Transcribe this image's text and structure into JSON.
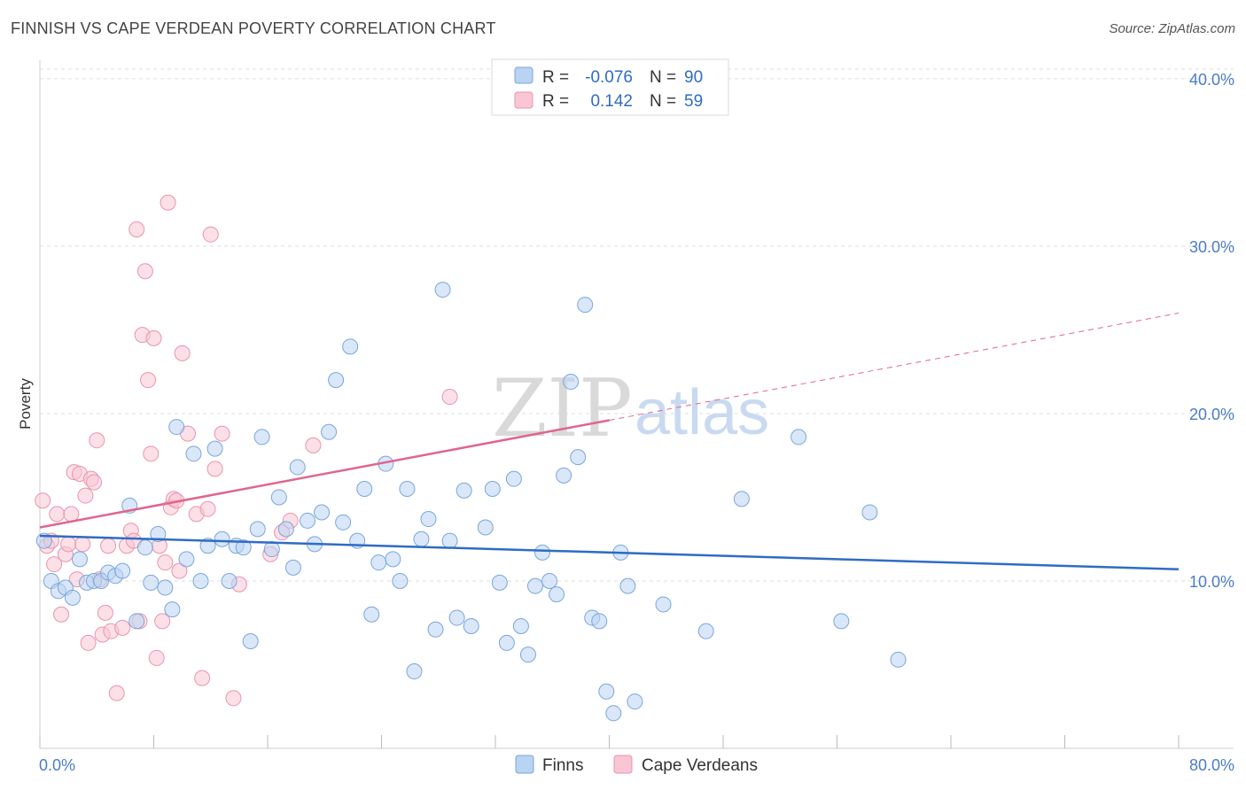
{
  "header": {
    "title": "FINNISH VS CAPE VERDEAN POVERTY CORRELATION CHART",
    "source": "Source: ZipAtlas.com"
  },
  "watermark": {
    "zip": "ZIP",
    "atlas": "atlas"
  },
  "colors": {
    "finns_fill": "#b9d3f3",
    "finns_stroke": "#7aa6dd",
    "finns_line": "#2f6cc4",
    "cape_fill": "#f9c6d4",
    "cape_stroke": "#e994ae",
    "cape_line": "#e0658f",
    "tick_text": "#4a7cc8",
    "grid": "#dddddd"
  },
  "legend": {
    "rows": [
      {
        "r_label": "R =",
        "r_value": "-0.076",
        "n_label": "N =",
        "n_value": "90"
      },
      {
        "r_label": "R =",
        "r_value": "0.142",
        "n_label": "N =",
        "n_value": "59"
      }
    ]
  },
  "bottom_legend": [
    "Finns",
    "Cape Verdeans"
  ],
  "chart_data": {
    "type": "scatter",
    "xlabel": "",
    "ylabel": "Poverty",
    "xlim": [
      0,
      80
    ],
    "ylim": [
      0,
      41
    ],
    "x_tick_labels": [
      "0.0%",
      "80.0%"
    ],
    "y_ticks": [
      10,
      20,
      30,
      40
    ],
    "y_tick_labels": [
      "10.0%",
      "20.0%",
      "30.0%",
      "40.0%"
    ],
    "grid": true,
    "legend_position": "top-center",
    "series": [
      {
        "name": "Finns",
        "trend": {
          "x": [
            0,
            80
          ],
          "y": [
            12.7,
            10.7
          ],
          "solid_to": 80
        },
        "points": [
          [
            0.3,
            12.4
          ],
          [
            0.8,
            10.0
          ],
          [
            1.3,
            9.4
          ],
          [
            1.8,
            9.6
          ],
          [
            2.3,
            9.0
          ],
          [
            2.8,
            11.3
          ],
          [
            3.3,
            9.9
          ],
          [
            3.8,
            10.0
          ],
          [
            4.3,
            10.0
          ],
          [
            4.8,
            10.5
          ],
          [
            5.3,
            10.3
          ],
          [
            5.8,
            10.6
          ],
          [
            6.3,
            14.5
          ],
          [
            6.8,
            7.6
          ],
          [
            7.4,
            12.0
          ],
          [
            7.8,
            9.9
          ],
          [
            8.3,
            12.8
          ],
          [
            8.8,
            9.6
          ],
          [
            9.3,
            8.3
          ],
          [
            9.6,
            19.2
          ],
          [
            10.3,
            11.3
          ],
          [
            10.8,
            17.6
          ],
          [
            11.3,
            10.0
          ],
          [
            11.8,
            12.1
          ],
          [
            12.3,
            17.9
          ],
          [
            12.8,
            12.5
          ],
          [
            13.3,
            10.0
          ],
          [
            13.8,
            12.1
          ],
          [
            14.3,
            12.0
          ],
          [
            14.8,
            6.4
          ],
          [
            15.3,
            13.1
          ],
          [
            15.6,
            18.6
          ],
          [
            16.3,
            11.9
          ],
          [
            16.8,
            15.0
          ],
          [
            17.3,
            13.1
          ],
          [
            17.8,
            10.8
          ],
          [
            18.1,
            16.8
          ],
          [
            18.8,
            13.6
          ],
          [
            19.3,
            12.2
          ],
          [
            19.8,
            14.1
          ],
          [
            20.3,
            18.9
          ],
          [
            20.8,
            22.0
          ],
          [
            21.3,
            13.5
          ],
          [
            21.8,
            24.0
          ],
          [
            22.3,
            12.4
          ],
          [
            22.8,
            15.5
          ],
          [
            23.3,
            8.0
          ],
          [
            23.8,
            11.1
          ],
          [
            24.3,
            17.0
          ],
          [
            24.8,
            11.3
          ],
          [
            25.3,
            10.0
          ],
          [
            25.8,
            15.5
          ],
          [
            26.3,
            4.6
          ],
          [
            26.8,
            12.5
          ],
          [
            27.3,
            13.7
          ],
          [
            27.8,
            7.1
          ],
          [
            28.3,
            27.4
          ],
          [
            28.8,
            12.4
          ],
          [
            29.3,
            7.8
          ],
          [
            29.8,
            15.4
          ],
          [
            30.3,
            7.3
          ],
          [
            31.3,
            13.2
          ],
          [
            31.8,
            15.5
          ],
          [
            32.3,
            9.9
          ],
          [
            32.8,
            6.3
          ],
          [
            33.3,
            16.1
          ],
          [
            33.8,
            7.3
          ],
          [
            34.3,
            5.6
          ],
          [
            34.8,
            9.7
          ],
          [
            35.3,
            11.7
          ],
          [
            35.8,
            10.0
          ],
          [
            36.3,
            9.2
          ],
          [
            36.8,
            16.3
          ],
          [
            37.3,
            21.9
          ],
          [
            37.8,
            17.4
          ],
          [
            38.3,
            26.5
          ],
          [
            38.8,
            7.8
          ],
          [
            39.3,
            7.6
          ],
          [
            39.8,
            3.4
          ],
          [
            40.3,
            2.1
          ],
          [
            40.8,
            11.7
          ],
          [
            41.3,
            9.7
          ],
          [
            41.8,
            2.8
          ],
          [
            43.8,
            8.6
          ],
          [
            46.8,
            7.0
          ],
          [
            49.3,
            14.9
          ],
          [
            53.3,
            18.6
          ],
          [
            56.3,
            7.6
          ],
          [
            58.3,
            14.1
          ],
          [
            60.3,
            5.3
          ]
        ]
      },
      {
        "name": "Cape Verdeans",
        "trend": {
          "x": [
            0,
            80
          ],
          "y": [
            13.2,
            26.0
          ],
          "solid_to": 40.0
        },
        "points": [
          [
            0.2,
            14.8
          ],
          [
            0.5,
            12.1
          ],
          [
            0.8,
            12.4
          ],
          [
            1.0,
            11.0
          ],
          [
            1.2,
            14.0
          ],
          [
            1.5,
            8.0
          ],
          [
            1.8,
            11.6
          ],
          [
            2.0,
            12.2
          ],
          [
            2.2,
            14.0
          ],
          [
            2.4,
            16.5
          ],
          [
            2.6,
            10.1
          ],
          [
            2.8,
            16.4
          ],
          [
            3.0,
            12.2
          ],
          [
            3.2,
            15.1
          ],
          [
            3.4,
            6.3
          ],
          [
            3.6,
            16.1
          ],
          [
            3.8,
            15.9
          ],
          [
            4.0,
            18.4
          ],
          [
            4.2,
            10.1
          ],
          [
            4.4,
            6.8
          ],
          [
            4.6,
            8.1
          ],
          [
            4.8,
            12.1
          ],
          [
            5.0,
            7.0
          ],
          [
            5.4,
            3.3
          ],
          [
            5.8,
            7.2
          ],
          [
            6.1,
            12.1
          ],
          [
            6.4,
            13.0
          ],
          [
            6.6,
            12.4
          ],
          [
            6.8,
            31.0
          ],
          [
            7.0,
            7.6
          ],
          [
            7.2,
            24.7
          ],
          [
            7.4,
            28.5
          ],
          [
            7.6,
            22.0
          ],
          [
            7.8,
            17.6
          ],
          [
            8.0,
            24.5
          ],
          [
            8.2,
            5.4
          ],
          [
            8.4,
            12.1
          ],
          [
            8.6,
            7.6
          ],
          [
            8.8,
            11.1
          ],
          [
            9.0,
            32.6
          ],
          [
            9.2,
            14.4
          ],
          [
            9.4,
            14.9
          ],
          [
            9.6,
            14.8
          ],
          [
            9.8,
            10.6
          ],
          [
            10.0,
            23.6
          ],
          [
            10.4,
            18.8
          ],
          [
            11.0,
            14.0
          ],
          [
            11.4,
            4.2
          ],
          [
            11.8,
            14.3
          ],
          [
            12.0,
            30.7
          ],
          [
            12.3,
            16.7
          ],
          [
            12.8,
            18.8
          ],
          [
            13.6,
            3.0
          ],
          [
            14.0,
            9.8
          ],
          [
            16.2,
            11.6
          ],
          [
            17.0,
            12.9
          ],
          [
            17.6,
            13.6
          ],
          [
            19.2,
            18.1
          ],
          [
            28.8,
            21.0
          ]
        ]
      }
    ]
  }
}
